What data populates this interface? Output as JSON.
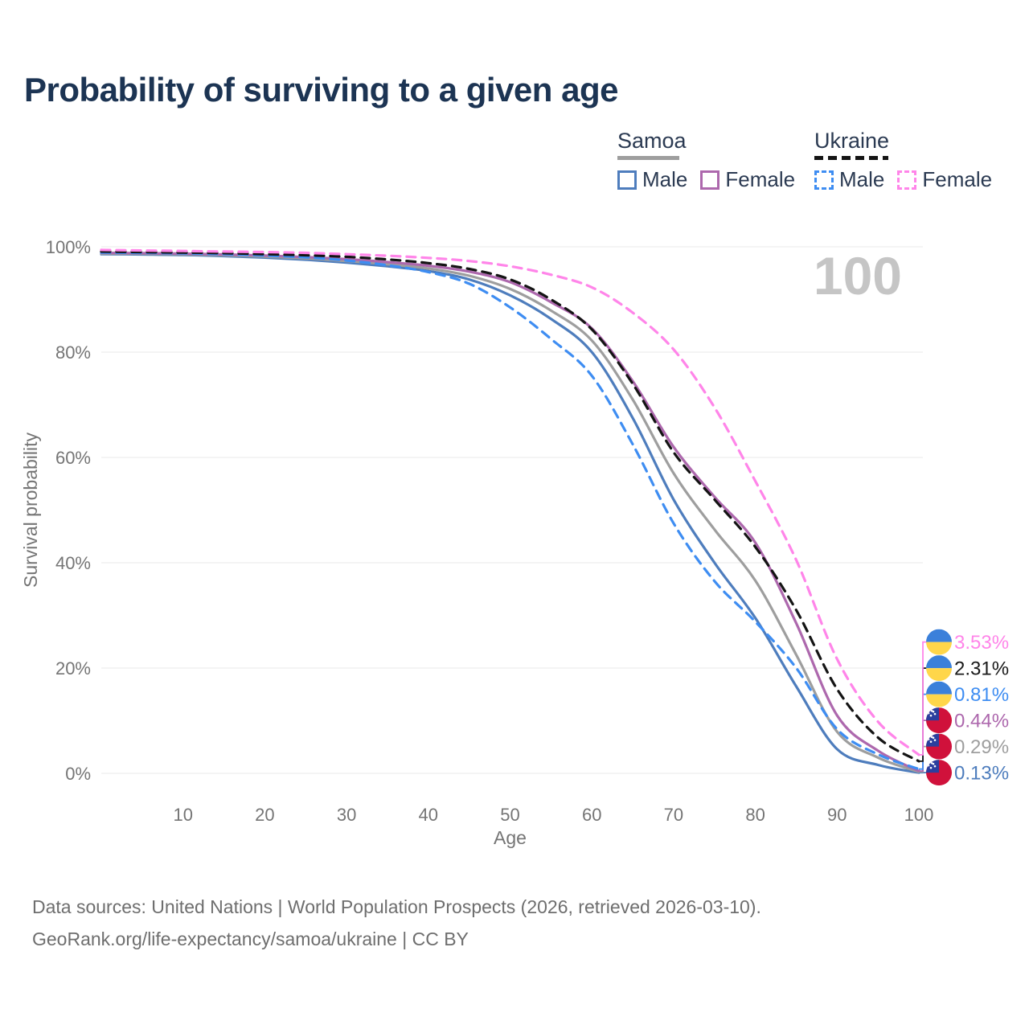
{
  "title": "Probability of surviving to a given age",
  "watermark": "100",
  "legend": {
    "groups": [
      {
        "name": "Samoa",
        "line_style": "solid",
        "underline_color": "#9e9e9e",
        "items": [
          {
            "label": "Male",
            "color": "#4e7dbd"
          },
          {
            "label": "Female",
            "color": "#ad68ad"
          }
        ]
      },
      {
        "name": "Ukraine",
        "line_style": "dashed",
        "underline_color": "#141414",
        "items": [
          {
            "label": "Male",
            "color": "#3e8df2"
          },
          {
            "label": "Female",
            "color": "#ff85e9"
          }
        ]
      }
    ]
  },
  "chart_data": {
    "type": "line",
    "title": "Probability of surviving to a given age",
    "xlabel": "Age",
    "ylabel": "Survival probability",
    "xlim": [
      0,
      100
    ],
    "ylim": [
      0,
      100
    ],
    "grid": "horizontal-only",
    "x_ticks": [
      10,
      20,
      30,
      40,
      50,
      60,
      70,
      80,
      90,
      100
    ],
    "y_ticks": [
      0,
      20,
      40,
      60,
      80,
      100
    ],
    "y_tick_suffix": "%",
    "legend_position": "top-right",
    "x": [
      0,
      5,
      10,
      15,
      20,
      25,
      30,
      35,
      40,
      45,
      50,
      55,
      60,
      65,
      70,
      75,
      80,
      85,
      90,
      95,
      100
    ],
    "series": [
      {
        "name": "Ukraine Female",
        "country": "Ukraine",
        "sex": "Female",
        "color": "#ff85e9",
        "label_color": "#ff85e9",
        "dash": true,
        "flag": "ukraine",
        "end_label": "3.53%",
        "end_value": 3.53,
        "values": [
          99.4,
          99.3,
          99.2,
          99.1,
          99.0,
          98.85,
          98.6,
          98.3,
          97.9,
          97.3,
          96.3,
          94.7,
          92.3,
          87.5,
          80.5,
          69.5,
          55.5,
          40.5,
          21.7,
          9.8,
          3.53
        ]
      },
      {
        "name": "Ukraine Total",
        "country": "Ukraine",
        "sex": "Both",
        "color": "#141414",
        "label_color": "#1a1a1a",
        "dash": true,
        "flag": "ukraine",
        "end_label": "2.31%",
        "end_value": 2.31,
        "values": [
          99.1,
          99.0,
          98.9,
          98.8,
          98.6,
          98.4,
          98.1,
          97.6,
          96.9,
          95.8,
          93.8,
          90.0,
          84.3,
          74.0,
          61.0,
          52.0,
          43.0,
          31.0,
          16.0,
          6.8,
          2.31
        ]
      },
      {
        "name": "Ukraine Male",
        "country": "Ukraine",
        "sex": "Male",
        "color": "#3e8df2",
        "label_color": "#3e8df2",
        "dash": true,
        "flag": "ukraine",
        "end_label": "0.81%",
        "end_value": 0.81,
        "values": [
          98.9,
          98.85,
          98.75,
          98.6,
          98.35,
          98.0,
          97.4,
          96.5,
          95.2,
          93.0,
          88.5,
          82.5,
          75.5,
          62.5,
          47.5,
          36.5,
          28.8,
          20.0,
          8.4,
          3.6,
          0.81
        ]
      },
      {
        "name": "Samoa Female",
        "country": "Samoa",
        "sex": "Female",
        "color": "#ad68ad",
        "label_color": "#ad68ad",
        "dash": false,
        "flag": "samoa",
        "end_label": "0.44%",
        "end_value": 0.44,
        "values": [
          98.85,
          98.8,
          98.7,
          98.55,
          98.35,
          98.05,
          97.65,
          97.1,
          96.4,
          95.3,
          93.3,
          89.5,
          84.5,
          74.5,
          62.0,
          52.5,
          43.8,
          28.5,
          11.0,
          4.3,
          0.44
        ]
      },
      {
        "name": "Samoa Total",
        "country": "Samoa",
        "sex": "Both",
        "color": "#9e9e9e",
        "label_color": "#9e9e9e",
        "dash": false,
        "flag": "samoa",
        "end_label": "0.29%",
        "end_value": 0.29,
        "values": [
          98.7,
          98.68,
          98.58,
          98.4,
          98.15,
          97.8,
          97.3,
          96.7,
          95.9,
          94.5,
          92.0,
          87.9,
          82.2,
          71.0,
          57.0,
          46.3,
          36.6,
          22.5,
          7.9,
          3.0,
          0.29
        ]
      },
      {
        "name": "Samoa Male",
        "country": "Samoa",
        "sex": "Male",
        "color": "#4e7dbd",
        "label_color": "#4e7dbd",
        "dash": false,
        "flag": "samoa",
        "end_label": "0.13%",
        "end_value": 0.13,
        "values": [
          98.6,
          98.55,
          98.45,
          98.25,
          97.95,
          97.55,
          97.0,
          96.3,
          95.4,
          93.8,
          90.8,
          86.3,
          80.0,
          67.5,
          52.0,
          40.0,
          29.5,
          16.5,
          4.6,
          1.6,
          0.13
        ]
      }
    ],
    "flag_colors": {
      "ukraine_blue": "#3b80da",
      "ukraine_yellow": "#ffd64a",
      "samoa_red": "#d0113b",
      "samoa_blue": "#2b3f9e"
    }
  },
  "footer": {
    "line1": "Data sources: United Nations | World Population Prospects (2026, retrieved 2026-03-10).",
    "line2": "GeoRank.org/life-expectancy/samoa/ukraine | CC BY"
  }
}
